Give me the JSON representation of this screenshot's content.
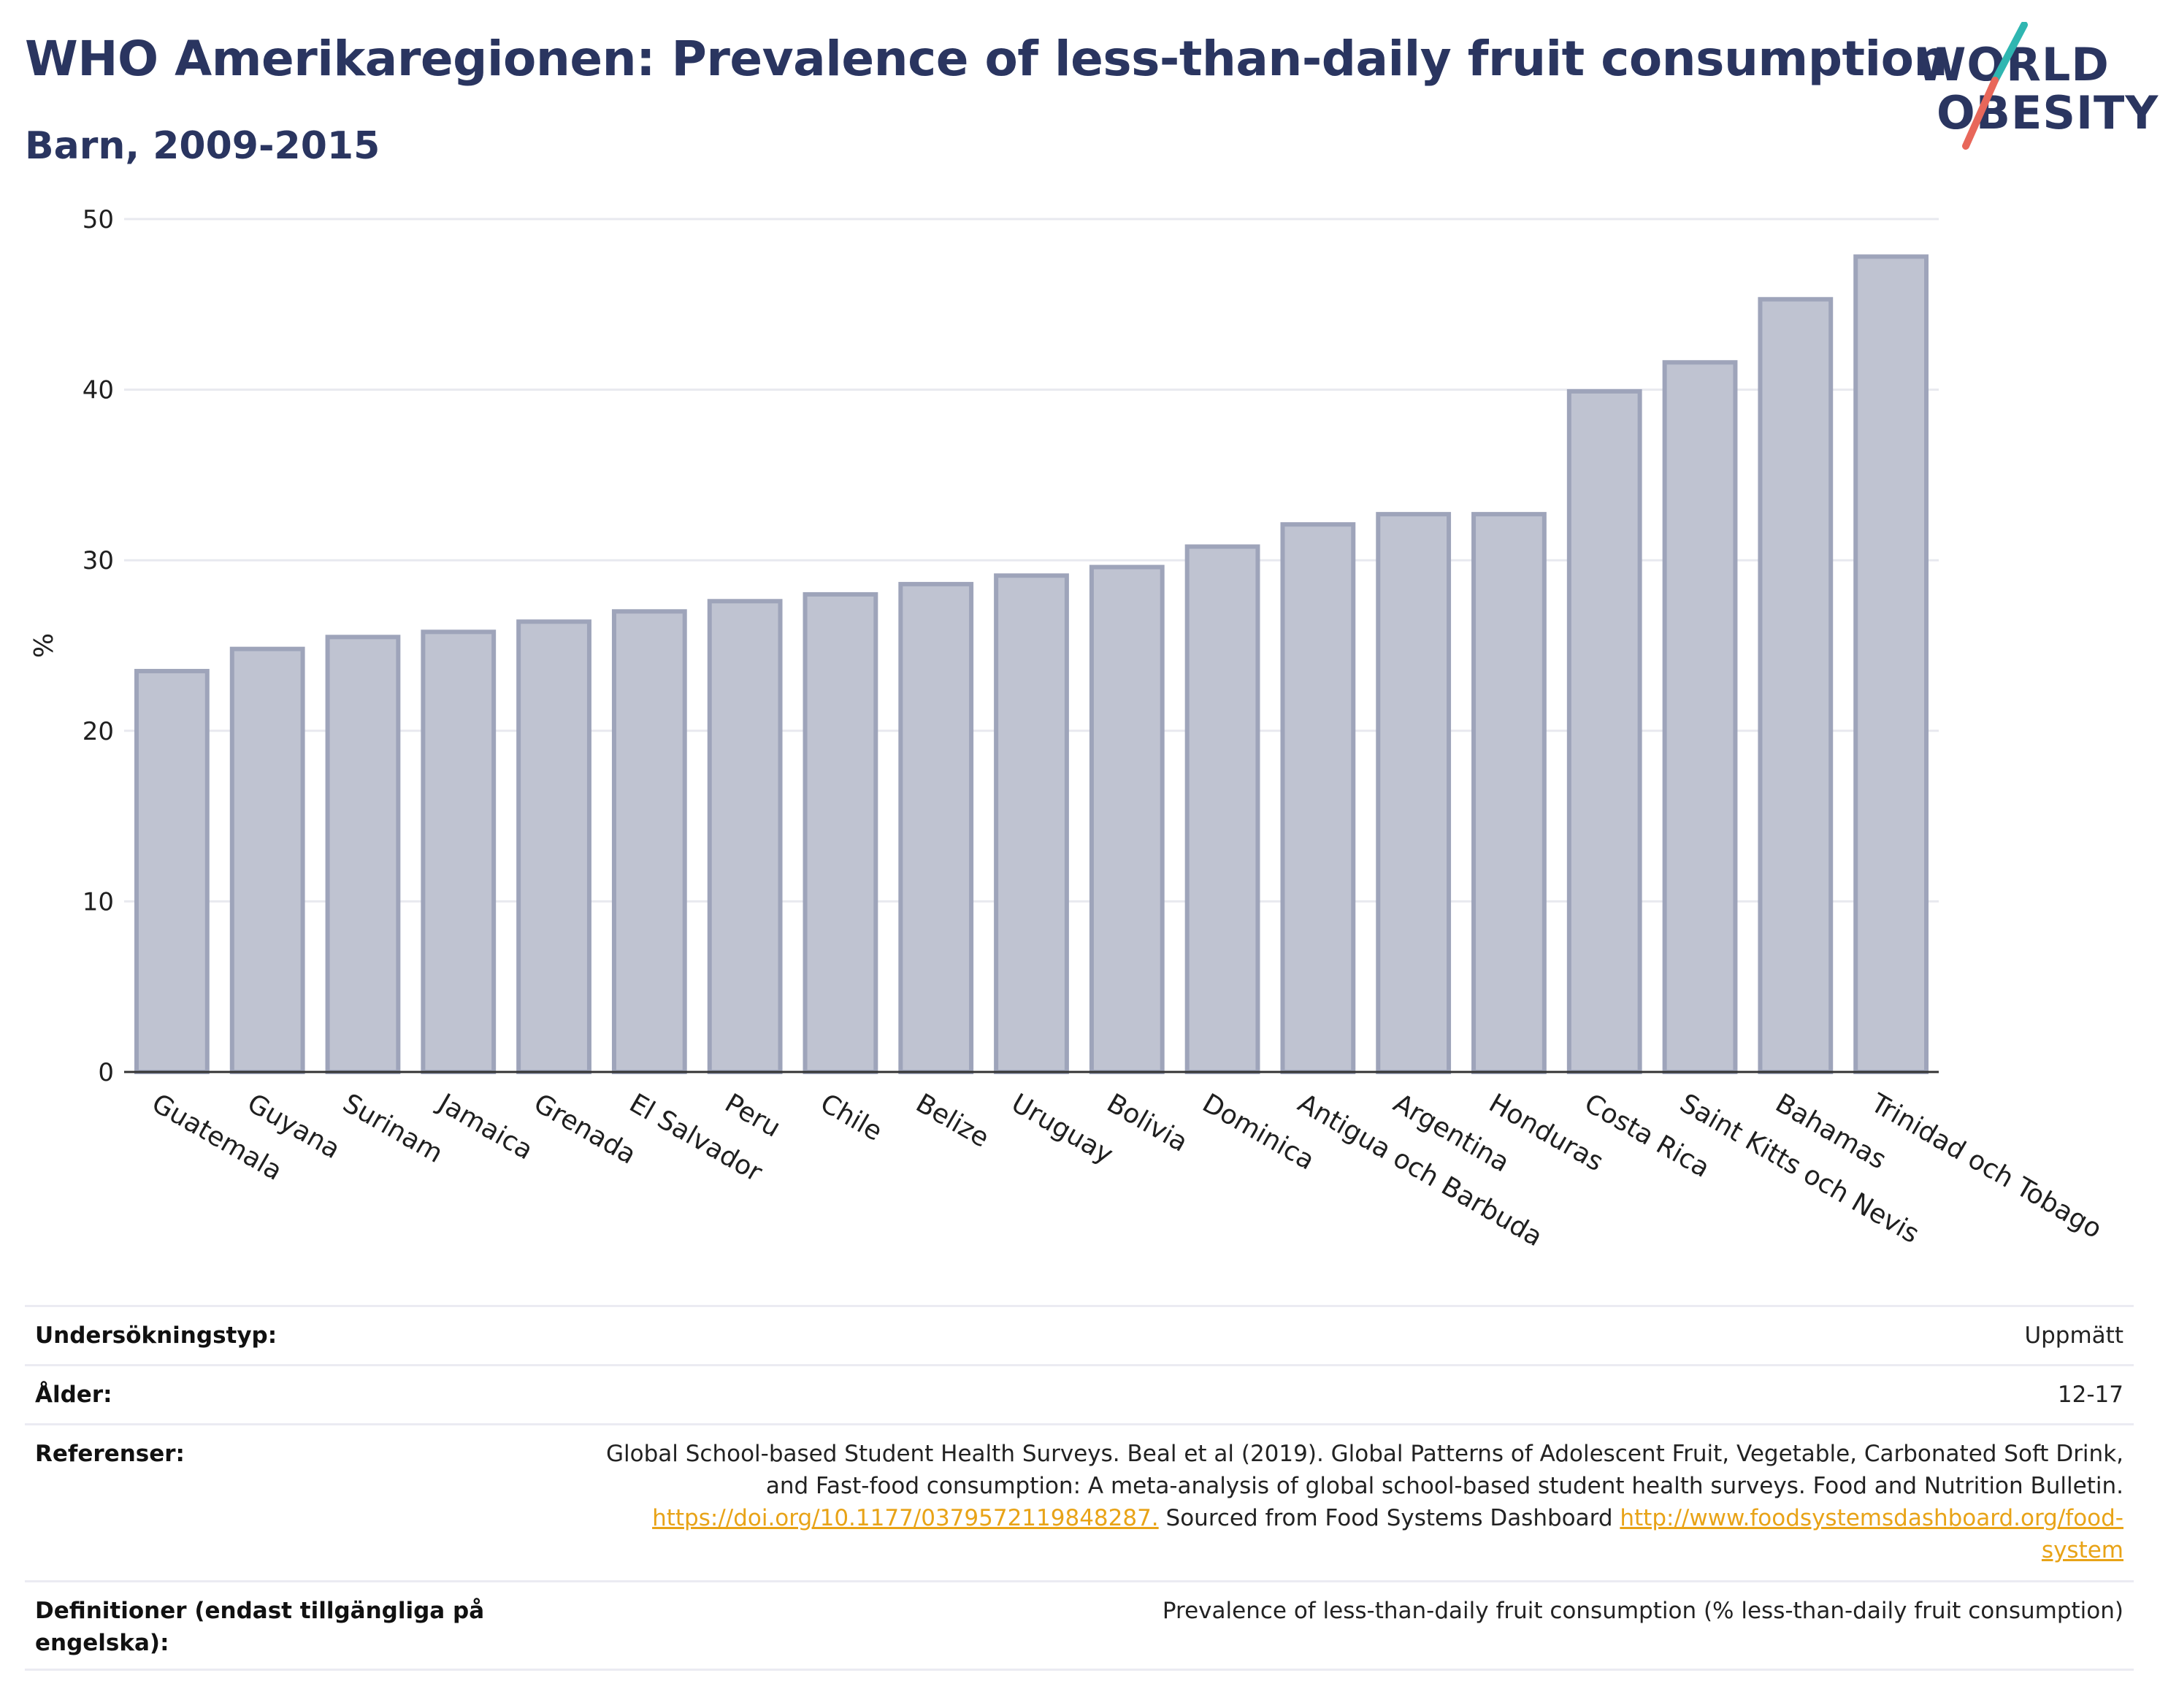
{
  "header": {
    "title": "WHO Amerikaregionen: Prevalence of less-than-daily fruit consumption",
    "subtitle": "Barn, 2009-2015",
    "logo_line1": "WORLD",
    "logo_line2": "OBESITY"
  },
  "chart_data": {
    "type": "bar",
    "categories": [
      "Guatemala",
      "Guyana",
      "Surinam",
      "Jamaica",
      "Grenada",
      "El Salvador",
      "Peru",
      "Chile",
      "Belize",
      "Uruguay",
      "Bolivia",
      "Dominica",
      "Antigua och Barbuda",
      "Argentina",
      "Honduras",
      "Costa Rica",
      "Saint Kitts och Nevis",
      "Bahamas",
      "Trinidad och Tobago"
    ],
    "values": [
      23.5,
      24.8,
      25.5,
      25.8,
      26.4,
      27.0,
      27.6,
      28.0,
      28.6,
      29.1,
      29.6,
      30.8,
      32.1,
      32.7,
      32.7,
      39.9,
      41.6,
      45.3,
      47.8
    ],
    "ylabel": "%",
    "xlabel": "",
    "ylim": [
      0,
      50
    ],
    "yticks": [
      0,
      10,
      20,
      30,
      40,
      50
    ],
    "grid": true,
    "colors": {
      "bar_fill": "#bfc3d1",
      "bar_stroke": "#9ea4ba",
      "grid": "#e8e9ef",
      "axis": "#333333"
    }
  },
  "meta": {
    "rows": [
      {
        "key": "Undersökningstyp:",
        "value": "Uppmätt"
      },
      {
        "key": "Ålder:",
        "value": "12-17"
      },
      {
        "key": "Referenser:",
        "ref_line1": "Global School-based Student Health Surveys. Beal et al (2019). Global Patterns of Adolescent Fruit, Vegetable, Carbonated Soft Drink,",
        "ref_line2": "and Fast-food consumption: A meta-analysis of global school-based student health surveys. Food and Nutrition Bulletin.",
        "ref_link1": "https://doi.org/10.1177/0379572119848287.",
        "ref_text3": " Sourced from Food Systems Dashboard ",
        "ref_link2a": "http://www.foodsystemsdashboard.org/food-",
        "ref_link2b": "system"
      },
      {
        "key_line1": "Definitioner (endast tillgängliga på",
        "key_line2": "engelska):",
        "value": "Prevalence of less-than-daily fruit consumption (% less-than-daily fruit consumption)"
      }
    ]
  }
}
